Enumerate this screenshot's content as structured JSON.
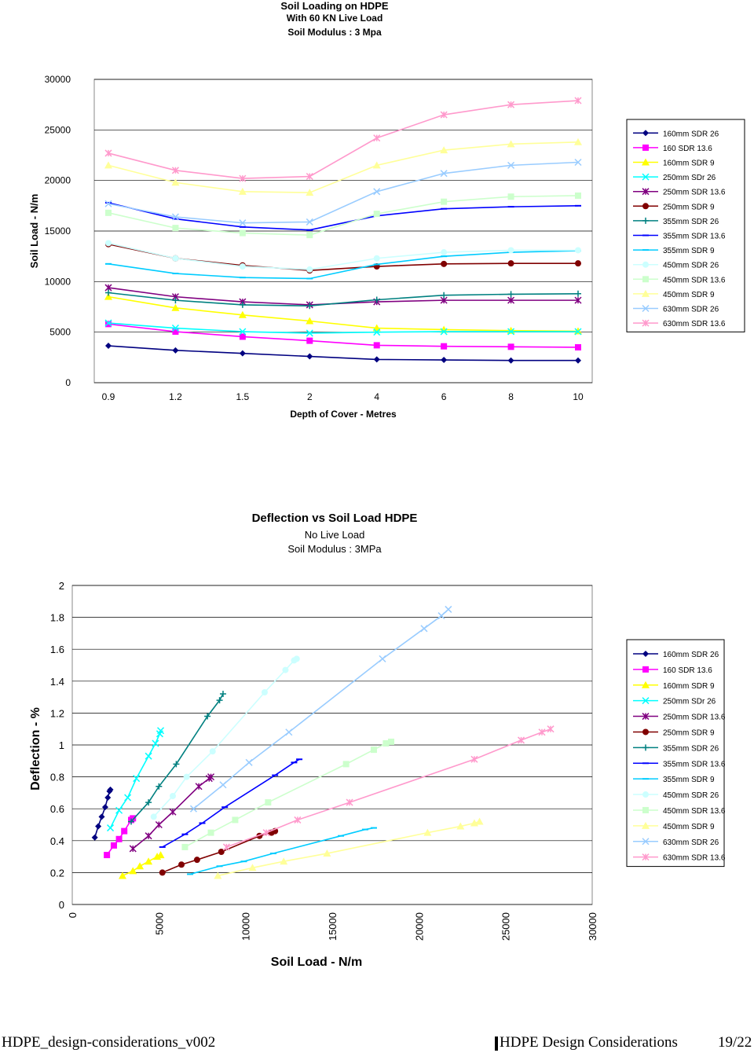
{
  "chart_data": [
    {
      "type": "line",
      "title": "Soil Loading on HDPE",
      "subtitle1": "With 60 KN Live Load",
      "subtitle2": "Soil Modulus : 3 Mpa",
      "xlabel": "Depth of Cover - Metres",
      "ylabel": "Soil Load - N/m",
      "categories": [
        "0.9",
        "1.2",
        "1.5",
        "2",
        "4",
        "6",
        "8",
        "10"
      ],
      "ylim": [
        0,
        30000
      ],
      "yticks": [
        "0",
        "5000",
        "10000",
        "15000",
        "20000",
        "25000",
        "30000"
      ],
      "grid": "horizontal",
      "legend": "right",
      "series": [
        {
          "name": "160mm SDR 26",
          "color": "#000080",
          "marker": "diamond",
          "values": [
            3650,
            3200,
            2900,
            2600,
            2300,
            2250,
            2200,
            2200
          ]
        },
        {
          "name": "160 SDR 13.6",
          "color": "#FF00FF",
          "marker": "square",
          "values": [
            5800,
            5050,
            4550,
            4150,
            3700,
            3600,
            3550,
            3500
          ]
        },
        {
          "name": "160mm SDR 9",
          "color": "#FFFF00",
          "marker": "triangle",
          "values": [
            8500,
            7400,
            6700,
            6100,
            5400,
            5250,
            5150,
            5100
          ]
        },
        {
          "name": "250mm SDr 26",
          "color": "#00FFFF",
          "marker": "x",
          "values": [
            5900,
            5400,
            5050,
            4900,
            5000,
            5050,
            5050,
            5050
          ]
        },
        {
          "name": "250mm SDR 13.6",
          "color": "#800080",
          "marker": "star",
          "values": [
            9400,
            8500,
            8000,
            7700,
            8000,
            8150,
            8150,
            8150
          ]
        },
        {
          "name": "250mm SDR 9",
          "color": "#800000",
          "marker": "circle",
          "values": [
            13700,
            12300,
            11600,
            11100,
            11500,
            11750,
            11800,
            11800
          ]
        },
        {
          "name": "355mm SDR 26",
          "color": "#008080",
          "marker": "plus",
          "values": [
            8900,
            8150,
            7700,
            7600,
            8200,
            8650,
            8750,
            8800
          ]
        },
        {
          "name": "355mm SDR 13.6",
          "color": "#0000FF",
          "marker": "dash",
          "values": [
            17800,
            16200,
            15400,
            15100,
            16500,
            17200,
            17400,
            17500
          ]
        },
        {
          "name": "355mm SDR 9",
          "color": "#00CCFF",
          "marker": "dash",
          "values": [
            11750,
            10800,
            10400,
            10300,
            11700,
            12500,
            12900,
            13050
          ]
        },
        {
          "name": "450mm SDR 26",
          "color": "#CCFFFF",
          "marker": "circle",
          "values": [
            13800,
            12300,
            11500,
            11200,
            12300,
            12900,
            13100,
            13100
          ]
        },
        {
          "name": "450mm SDR 13.6",
          "color": "#CCFFCC",
          "marker": "square",
          "values": [
            16800,
            15300,
            14800,
            14600,
            16700,
            17900,
            18400,
            18500
          ]
        },
        {
          "name": "450mm SDR 9",
          "color": "#FFFF99",
          "marker": "triangle",
          "values": [
            21500,
            19800,
            18900,
            18800,
            21500,
            23000,
            23600,
            23800
          ]
        },
        {
          "name": "630mm SDR 26",
          "color": "#99CCFF",
          "marker": "x",
          "values": [
            17700,
            16400,
            15800,
            15900,
            18900,
            20700,
            21500,
            21800
          ]
        },
        {
          "name": "630mm SDR 13.6",
          "color": "#FF99CC",
          "marker": "star",
          "values": [
            22700,
            21000,
            20200,
            20400,
            24200,
            26500,
            27500,
            27900
          ]
        }
      ]
    },
    {
      "type": "scatter",
      "title": "Deflection vs Soil Load HDPE",
      "subtitle1": "No Live Load",
      "subtitle2": "Soil Modulus : 3MPa",
      "xlabel": "Soil Load - N/m",
      "ylabel": "Deflection - %",
      "xlim": [
        0,
        30000
      ],
      "ylim": [
        0,
        2
      ],
      "xticks": [
        "0",
        "5000",
        "10000",
        "15000",
        "20000",
        "25000",
        "30000"
      ],
      "yticks": [
        "0",
        "0.2",
        "0.4",
        "0.6",
        "0.8",
        "1",
        "1.2",
        "1.4",
        "1.6",
        "1.8",
        "2"
      ],
      "grid": "horizontal",
      "legend": "right",
      "series": [
        {
          "name": "160mm SDR 26",
          "color": "#000080",
          "marker": "diamond",
          "points": [
            [
              1300,
              0.42
            ],
            [
              1500,
              0.49
            ],
            [
              1700,
              0.55
            ],
            [
              1900,
              0.61
            ],
            [
              2050,
              0.67
            ],
            [
              2150,
              0.71
            ],
            [
              2200,
              0.72
            ]
          ]
        },
        {
          "name": "160 SDR 13.6",
          "color": "#FF00FF",
          "marker": "square",
          "points": [
            [
              2000,
              0.31
            ],
            [
              2400,
              0.37
            ],
            [
              2700,
              0.41
            ],
            [
              3000,
              0.46
            ],
            [
              3400,
              0.53
            ],
            [
              3500,
              0.54
            ]
          ]
        },
        {
          "name": "160mm SDR 9",
          "color": "#FFFF00",
          "marker": "triangle",
          "points": [
            [
              2900,
              0.18
            ],
            [
              3500,
              0.21
            ],
            [
              3900,
              0.24
            ],
            [
              4400,
              0.27
            ],
            [
              4900,
              0.3
            ],
            [
              5100,
              0.31
            ]
          ]
        },
        {
          "name": "250mm SDr 26",
          "color": "#00FFFF",
          "marker": "x",
          "points": [
            [
              2200,
              0.48
            ],
            [
              2700,
              0.59
            ],
            [
              3200,
              0.67
            ],
            [
              3700,
              0.79
            ],
            [
              4400,
              0.93
            ],
            [
              4800,
              1.01
            ],
            [
              5050,
              1.07
            ],
            [
              5100,
              1.09
            ]
          ]
        },
        {
          "name": "250mm SDR 13.6",
          "color": "#800080",
          "marker": "star",
          "points": [
            [
              3500,
              0.35
            ],
            [
              4400,
              0.43
            ],
            [
              5000,
              0.5
            ],
            [
              5800,
              0.58
            ],
            [
              7300,
              0.74
            ],
            [
              7900,
              0.79
            ],
            [
              8000,
              0.8
            ]
          ]
        },
        {
          "name": "250mm SDR 9",
          "color": "#800000",
          "marker": "circle",
          "points": [
            [
              5200,
              0.2
            ],
            [
              6300,
              0.25
            ],
            [
              7200,
              0.28
            ],
            [
              8600,
              0.33
            ],
            [
              10800,
              0.43
            ],
            [
              11500,
              0.45
            ],
            [
              11700,
              0.46
            ]
          ]
        },
        {
          "name": "355mm SDR 26",
          "color": "#008080",
          "marker": "plus",
          "points": [
            [
              3400,
              0.52
            ],
            [
              4400,
              0.64
            ],
            [
              5000,
              0.74
            ],
            [
              6000,
              0.88
            ],
            [
              7800,
              1.18
            ],
            [
              8500,
              1.28
            ],
            [
              8700,
              1.32
            ]
          ]
        },
        {
          "name": "355mm SDR 13.6",
          "color": "#0000FF",
          "marker": "dash",
          "points": [
            [
              5200,
              0.36
            ],
            [
              6500,
              0.44
            ],
            [
              7500,
              0.51
            ],
            [
              8800,
              0.61
            ],
            [
              11700,
              0.81
            ],
            [
              12800,
              0.89
            ],
            [
              13100,
              0.91
            ]
          ]
        },
        {
          "name": "355mm SDR 9",
          "color": "#00CCFF",
          "marker": "dash",
          "points": [
            [
              6800,
              0.19
            ],
            [
              8500,
              0.24
            ],
            [
              9900,
              0.27
            ],
            [
              11600,
              0.32
            ],
            [
              15500,
              0.43
            ],
            [
              16900,
              0.47
            ],
            [
              17400,
              0.48
            ]
          ]
        },
        {
          "name": "450mm SDR 26",
          "color": "#CCFFFF",
          "marker": "circle",
          "points": [
            [
              4700,
              0.55
            ],
            [
              5800,
              0.68
            ],
            [
              6600,
              0.8
            ],
            [
              8100,
              0.96
            ],
            [
              11100,
              1.33
            ],
            [
              12300,
              1.47
            ],
            [
              12800,
              1.53
            ],
            [
              12950,
              1.54
            ]
          ]
        },
        {
          "name": "450mm SDR 13.6",
          "color": "#CCFFCC",
          "marker": "square",
          "points": [
            [
              6500,
              0.36
            ],
            [
              8000,
              0.45
            ],
            [
              9400,
              0.53
            ],
            [
              11300,
              0.64
            ],
            [
              15800,
              0.88
            ],
            [
              17400,
              0.97
            ],
            [
              18100,
              1.01
            ],
            [
              18400,
              1.02
            ]
          ]
        },
        {
          "name": "450mm SDR 9",
          "color": "#FFFF99",
          "marker": "triangle",
          "points": [
            [
              8400,
              0.18
            ],
            [
              10400,
              0.23
            ],
            [
              12200,
              0.27
            ],
            [
              14700,
              0.32
            ],
            [
              20500,
              0.45
            ],
            [
              22400,
              0.49
            ],
            [
              23200,
              0.51
            ],
            [
              23500,
              0.52
            ]
          ]
        },
        {
          "name": "630mm SDR 26",
          "color": "#99CCFF",
          "marker": "x",
          "points": [
            [
              7000,
              0.6
            ],
            [
              8700,
              0.75
            ],
            [
              10200,
              0.89
            ],
            [
              12500,
              1.08
            ],
            [
              17900,
              1.54
            ],
            [
              20300,
              1.73
            ],
            [
              21300,
              1.81
            ],
            [
              21700,
              1.85
            ]
          ]
        },
        {
          "name": "630mm SDR 13.6",
          "color": "#FF99CC",
          "marker": "star",
          "points": [
            [
              8900,
              0.36
            ],
            [
              11200,
              0.45
            ],
            [
              13000,
              0.53
            ],
            [
              16000,
              0.64
            ],
            [
              23200,
              0.91
            ],
            [
              25900,
              1.03
            ],
            [
              27100,
              1.08
            ],
            [
              27600,
              1.1
            ]
          ]
        }
      ]
    }
  ],
  "footer": {
    "left": "HDPE_design-considerations_v002",
    "middle": "HDPE Design Considerations",
    "right": "19/22"
  }
}
